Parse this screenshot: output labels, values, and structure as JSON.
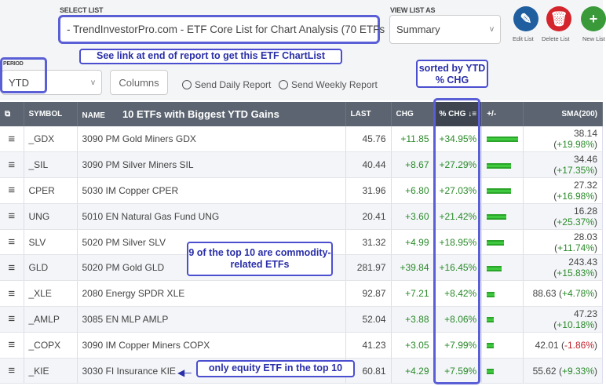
{
  "select_list": {
    "label": "SELECT LIST",
    "value": "- TrendInvestorPro.com - ETF Core List for Chart Analysis (70 ETFs"
  },
  "view_list": {
    "label": "VIEW LIST AS",
    "value": "Summary"
  },
  "actions": [
    {
      "label": "Edit List",
      "icon": "pencil-icon",
      "color": "#1f5fa0"
    },
    {
      "label": "Delete List",
      "icon": "trash-icon",
      "color": "#d4242c"
    },
    {
      "label": "New List",
      "icon": "plus-icon",
      "color": "#3a9a3a"
    }
  ],
  "period": {
    "label": "PERIOD",
    "value": "YTD"
  },
  "columns_button": "Columns",
  "send_daily": "Send Daily Report",
  "send_weekly": "Send Weekly Report",
  "annotations": {
    "link": "See link at end of report to get this ETF ChartList",
    "sorted": "sorted by YTD % CHG",
    "commodity": "9 of the top 10 are commodity-related ETFs",
    "equity": "only equity ETF in the top 10"
  },
  "table": {
    "headers": [
      "SYMBOL",
      "NAME",
      "10 ETFs with Biggest YTD Gains",
      "LAST",
      "CHG",
      "% CHG",
      "+/-",
      "SMA(200)"
    ],
    "rows": [
      {
        "symbol": "_GDX",
        "name": "3090 PM Gold Miners GDX",
        "last": "45.76",
        "chg": "+11.85",
        "pct": "+34.95%",
        "pct_value": 34.95,
        "sma": "38.14",
        "sma_pct": "+19.98%"
      },
      {
        "symbol": "_SIL",
        "name": "3090 PM Silver Miners SIL",
        "last": "40.44",
        "chg": "+8.67",
        "pct": "+27.29%",
        "pct_value": 27.29,
        "sma": "34.46",
        "sma_pct": "+17.35%"
      },
      {
        "symbol": "CPER",
        "name": "5030 IM Copper CPER",
        "last": "31.96",
        "chg": "+6.80",
        "pct": "+27.03%",
        "pct_value": 27.03,
        "sma": "27.32",
        "sma_pct": "+16.98%"
      },
      {
        "symbol": "UNG",
        "name": "5010 EN Natural Gas Fund UNG",
        "last": "20.41",
        "chg": "+3.60",
        "pct": "+21.42%",
        "pct_value": 21.42,
        "sma": "16.28",
        "sma_pct": "+25.37%"
      },
      {
        "symbol": "SLV",
        "name": "5020 PM Silver SLV",
        "last": "31.32",
        "chg": "+4.99",
        "pct": "+18.95%",
        "pct_value": 18.95,
        "sma": "28.03",
        "sma_pct": "+11.74%"
      },
      {
        "symbol": "GLD",
        "name": "5020 PM Gold GLD",
        "last": "281.97",
        "chg": "+39.84",
        "pct": "+16.45%",
        "pct_value": 16.45,
        "sma": "243.43",
        "sma_pct": "+15.83%"
      },
      {
        "symbol": "_XLE",
        "name": "2080 Energy SPDR XLE",
        "last": "92.87",
        "chg": "+7.21",
        "pct": "+8.42%",
        "pct_value": 8.42,
        "sma": "88.63",
        "sma_pct": "+4.78%"
      },
      {
        "symbol": "_AMLP",
        "name": "3085 EN MLP AMLP",
        "last": "52.04",
        "chg": "+3.88",
        "pct": "+8.06%",
        "pct_value": 8.06,
        "sma": "47.23",
        "sma_pct": "+10.18%"
      },
      {
        "symbol": "_COPX",
        "name": "3090 IM Copper Miners COPX",
        "last": "41.23",
        "chg": "+3.05",
        "pct": "+7.99%",
        "pct_value": 7.99,
        "sma": "42.01",
        "sma_pct": "-1.86%"
      },
      {
        "symbol": "_KIE",
        "name": "3030 FI Insurance KIE",
        "last": "60.81",
        "chg": "+4.29",
        "pct": "+7.59%",
        "pct_value": 7.59,
        "sma": "55.62",
        "sma_pct": "+9.33%"
      }
    ]
  }
}
